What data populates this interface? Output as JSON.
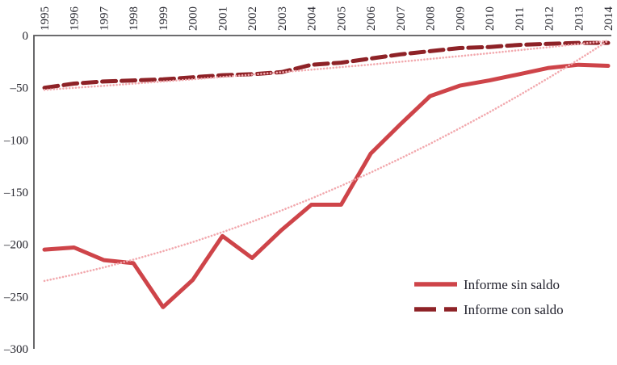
{
  "chart_data": {
    "type": "line",
    "title": "",
    "xlabel": "",
    "ylabel": "",
    "x": [
      1995,
      1996,
      1997,
      1998,
      1999,
      2000,
      2001,
      2002,
      2003,
      2004,
      2005,
      2006,
      2007,
      2008,
      2009,
      2010,
      2011,
      2012,
      2013,
      2014
    ],
    "x_tick_labels": [
      "1995",
      "1996",
      "1997",
      "1998",
      "1999",
      "2000",
      "2001",
      "2002",
      "2003",
      "2004",
      "2005",
      "2006",
      "2007",
      "2008",
      "2009",
      "2010",
      "2011",
      "2012",
      "2013",
      "2014"
    ],
    "ylim": [
      -300,
      0
    ],
    "y_ticks": [
      {
        "label": "0",
        "value": 0
      },
      {
        "label": "–50",
        "value": -50
      },
      {
        "label": "–100",
        "value": -100
      },
      {
        "label": "–150",
        "value": -150
      },
      {
        "label": "–200",
        "value": -200
      },
      {
        "label": "–250",
        "value": -250
      },
      {
        "label": "–300",
        "value": -300
      }
    ],
    "grid": false,
    "legend_position": "inside-bottom-right",
    "series": [
      {
        "name": "Informe sin saldo",
        "line_style": "solid",
        "color": "#ce4449",
        "stroke_width": 5,
        "values": [
          -205,
          -203,
          -215,
          -218,
          -260,
          -234,
          -192,
          -213,
          -186,
          -162,
          -162,
          -113,
          -85,
          -58,
          -48,
          -43,
          -37,
          -31,
          -28,
          -29
        ]
      },
      {
        "name": "Informe con saldo",
        "line_style": "dashed",
        "color": "#8e2227",
        "stroke_width": 5,
        "values": [
          -50,
          -46,
          -44,
          -43,
          -42,
          -40,
          -38,
          -37,
          -35,
          -28,
          -26,
          -22,
          -18,
          -15,
          -12,
          -11,
          -9,
          -8,
          -7,
          -7
        ]
      }
    ],
    "trendlines": [
      {
        "for_series": "Informe sin saldo",
        "line_style": "dotted",
        "color": "#f2a9ae",
        "stroke_width": 2.6,
        "values": [
          -235,
          -228.9,
          -222.1,
          -214.6,
          -206.5,
          -197.8,
          -188.3,
          -178.2,
          -167.4,
          -156.0,
          -143.9,
          -131.1,
          -117.7,
          -103.6,
          -88.8,
          -73.4,
          -57.3,
          -40.5,
          -23.1,
          -5.0
        ]
      },
      {
        "for_series": "Informe con saldo",
        "line_style": "dotted",
        "color": "#f2a9ae",
        "stroke_width": 2.6,
        "values": [
          -52.0,
          -50.1,
          -48.2,
          -46.1,
          -44.0,
          -41.9,
          -39.7,
          -37.4,
          -35.1,
          -32.7,
          -30.2,
          -27.8,
          -25.1,
          -22.4,
          -19.7,
          -16.9,
          -14.0,
          -11.1,
          -8.1,
          -5.1
        ]
      }
    ],
    "legend": [
      {
        "label": "Informe sin saldo",
        "swatch": "solid"
      },
      {
        "label": "Informe con saldo",
        "swatch": "dashed"
      }
    ]
  },
  "style": {
    "axis_color": "#58585a",
    "tick_label_color": "#26262e",
    "legend_text_color": "#23232e",
    "background": "#ffffff"
  }
}
